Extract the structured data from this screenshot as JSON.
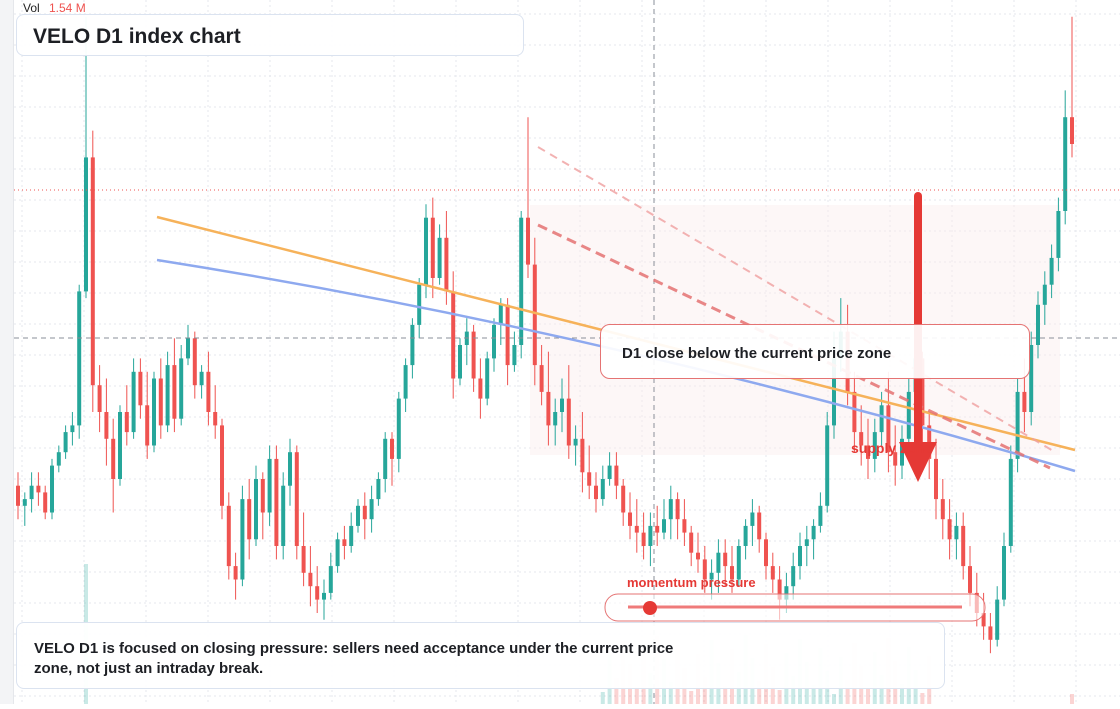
{
  "header": {
    "vol_label": "Vol",
    "vol_value": "1.54 M",
    "title": "VELO D1 index chart"
  },
  "annotations": {
    "callout": "D1 close below the current price zone",
    "zone_label": "supply zone",
    "momentum_label": "momentum pressure",
    "note": "VELO D1 is focused on closing pressure: sellers need acceptance under the current price zone, not just an intraday break."
  },
  "colors": {
    "up": "#26a69a",
    "down": "#ef5350",
    "arrow": "#e53935",
    "yellow_line": "#f6b25a",
    "blue_line": "#8ea9ef",
    "grid": "#e4e7ec",
    "crosshair": "#8a8f98",
    "price_line": "#ef5350"
  },
  "chart_data": {
    "type": "candlestick",
    "note": "Price axis is not printed; values are in relative index units (0-100).",
    "ylim": [
      0,
      100
    ],
    "candles": [
      [
        29,
        31,
        24,
        26
      ],
      [
        26,
        28,
        23,
        27
      ],
      [
        27,
        31,
        25,
        29
      ],
      [
        29,
        31,
        26,
        28
      ],
      [
        28,
        29,
        24,
        25
      ],
      [
        25,
        33,
        24,
        32
      ],
      [
        32,
        35,
        31,
        34
      ],
      [
        34,
        38,
        33,
        37
      ],
      [
        37,
        40,
        35,
        38
      ],
      [
        38,
        59,
        36,
        58
      ],
      [
        58,
        99,
        57,
        78
      ],
      [
        78,
        82,
        40,
        44
      ],
      [
        44,
        47,
        37,
        40
      ],
      [
        40,
        45,
        32,
        36
      ],
      [
        36,
        39,
        25,
        30
      ],
      [
        30,
        41,
        29,
        40
      ],
      [
        40,
        44,
        35,
        37
      ],
      [
        37,
        48,
        36,
        46
      ],
      [
        46,
        48,
        39,
        41
      ],
      [
        41,
        46,
        33,
        35
      ],
      [
        35,
        46,
        34,
        45
      ],
      [
        45,
        48,
        36,
        38
      ],
      [
        38,
        49,
        37,
        47
      ],
      [
        47,
        51,
        37,
        39
      ],
      [
        39,
        50,
        38,
        48
      ],
      [
        48,
        53,
        47,
        51
      ],
      [
        51,
        52,
        42,
        44
      ],
      [
        44,
        47,
        42,
        46
      ],
      [
        46,
        49,
        38,
        40
      ],
      [
        40,
        44,
        36,
        38
      ],
      [
        38,
        39,
        24,
        26
      ],
      [
        26,
        28,
        15,
        17
      ],
      [
        17,
        19,
        12,
        15
      ],
      [
        15,
        29,
        14,
        27
      ],
      [
        27,
        30,
        18,
        21
      ],
      [
        21,
        32,
        20,
        30
      ],
      [
        30,
        31,
        21,
        25
      ],
      [
        25,
        35,
        23,
        33
      ],
      [
        33,
        35,
        18,
        20
      ],
      [
        20,
        31,
        18,
        29
      ],
      [
        29,
        36,
        26,
        34
      ],
      [
        34,
        35,
        18,
        20
      ],
      [
        20,
        25,
        14,
        16
      ],
      [
        16,
        20,
        11,
        14
      ],
      [
        14,
        17,
        10,
        12
      ],
      [
        12,
        15,
        9,
        13
      ],
      [
        13,
        19,
        12,
        17
      ],
      [
        17,
        22,
        16,
        21
      ],
      [
        21,
        23,
        18,
        20
      ],
      [
        20,
        25,
        19,
        23
      ],
      [
        23,
        27,
        22,
        26
      ],
      [
        26,
        28,
        21,
        24
      ],
      [
        24,
        29,
        22,
        27
      ],
      [
        27,
        31,
        26,
        30
      ],
      [
        30,
        37,
        28,
        36
      ],
      [
        36,
        37,
        29,
        33
      ],
      [
        33,
        43,
        31,
        42
      ],
      [
        42,
        48,
        40,
        47
      ],
      [
        47,
        54,
        45,
        53
      ],
      [
        53,
        60,
        51,
        59
      ],
      [
        59,
        71,
        57,
        69
      ],
      [
        69,
        72,
        57,
        60
      ],
      [
        60,
        68,
        59,
        66
      ],
      [
        66,
        70,
        56,
        58
      ],
      [
        58,
        61,
        42,
        45
      ],
      [
        45,
        51,
        44,
        50
      ],
      [
        50,
        54,
        47,
        52
      ],
      [
        52,
        53,
        43,
        45
      ],
      [
        45,
        48,
        39,
        42
      ],
      [
        42,
        49,
        41,
        48
      ],
      [
        48,
        54,
        46,
        53
      ],
      [
        53,
        57,
        50,
        56
      ],
      [
        56,
        57,
        44,
        47
      ],
      [
        47,
        52,
        46,
        50
      ],
      [
        50,
        70,
        48,
        69
      ],
      [
        69,
        84,
        60,
        62
      ],
      [
        62,
        66,
        44,
        47
      ],
      [
        47,
        50,
        41,
        43
      ],
      [
        43,
        49,
        35,
        38
      ],
      [
        38,
        42,
        35,
        40
      ],
      [
        40,
        45,
        37,
        42
      ],
      [
        42,
        47,
        33,
        35
      ],
      [
        35,
        38,
        32,
        36
      ],
      [
        36,
        40,
        28,
        31
      ],
      [
        31,
        35,
        27,
        29
      ],
      [
        29,
        31,
        25,
        27
      ],
      [
        27,
        32,
        26,
        30
      ],
      [
        30,
        34,
        29,
        32
      ],
      [
        32,
        34,
        27,
        29
      ],
      [
        29,
        30,
        23,
        25
      ],
      [
        25,
        28,
        21,
        23
      ],
      [
        23,
        27,
        19,
        22
      ],
      [
        22,
        25,
        18,
        20
      ],
      [
        20,
        25,
        17,
        23
      ],
      [
        23,
        26,
        20,
        22
      ],
      [
        22,
        27,
        21,
        24
      ],
      [
        24,
        29,
        21,
        27
      ],
      [
        27,
        28,
        21,
        24
      ],
      [
        24,
        27,
        20,
        22
      ],
      [
        22,
        23,
        17,
        19
      ],
      [
        19,
        22,
        16,
        18
      ],
      [
        18,
        20,
        13,
        15
      ],
      [
        15,
        18,
        12,
        16
      ],
      [
        16,
        21,
        13,
        19
      ],
      [
        19,
        21,
        14,
        17
      ],
      [
        17,
        20,
        13,
        15
      ],
      [
        15,
        21,
        14,
        20
      ],
      [
        20,
        24,
        18,
        23
      ],
      [
        23,
        27,
        20,
        25
      ],
      [
        25,
        26,
        19,
        21
      ],
      [
        21,
        22,
        15,
        17
      ],
      [
        17,
        19,
        13,
        15
      ],
      [
        15,
        17,
        9,
        12
      ],
      [
        12,
        16,
        10,
        14
      ],
      [
        14,
        19,
        12,
        17
      ],
      [
        17,
        22,
        15,
        20
      ],
      [
        20,
        23,
        17,
        21
      ],
      [
        21,
        24,
        18,
        23
      ],
      [
        23,
        28,
        22,
        26
      ],
      [
        26,
        40,
        25,
        38
      ],
      [
        38,
        52,
        36,
        48
      ],
      [
        48,
        57,
        46,
        52
      ],
      [
        52,
        56,
        41,
        43
      ],
      [
        43,
        46,
        34,
        37
      ],
      [
        37,
        41,
        32,
        35
      ],
      [
        35,
        39,
        30,
        33
      ],
      [
        33,
        39,
        31,
        37
      ],
      [
        37,
        43,
        35,
        41
      ],
      [
        41,
        46,
        31,
        34
      ],
      [
        34,
        38,
        29,
        32
      ],
      [
        32,
        38,
        30,
        36
      ],
      [
        36,
        45,
        34,
        43
      ],
      [
        43,
        50,
        41,
        48
      ],
      [
        48,
        49,
        35,
        38
      ],
      [
        38,
        40,
        30,
        33
      ],
      [
        33,
        36,
        24,
        27
      ],
      [
        27,
        30,
        21,
        24
      ],
      [
        24,
        27,
        18,
        21
      ],
      [
        21,
        25,
        18,
        23
      ],
      [
        23,
        25,
        15,
        17
      ],
      [
        17,
        20,
        11,
        13
      ],
      [
        13,
        16,
        8,
        10
      ],
      [
        10,
        13,
        6,
        8
      ],
      [
        8,
        10,
        4,
        6
      ],
      [
        6,
        14,
        5,
        12
      ],
      [
        12,
        22,
        11,
        20
      ],
      [
        20,
        35,
        19,
        33
      ],
      [
        33,
        45,
        31,
        43
      ],
      [
        43,
        48,
        37,
        40
      ],
      [
        40,
        52,
        38,
        50
      ],
      [
        50,
        58,
        48,
        56
      ],
      [
        56,
        61,
        53,
        59
      ],
      [
        59,
        65,
        57,
        63
      ],
      [
        63,
        72,
        61,
        70
      ],
      [
        70,
        88,
        68,
        84
      ],
      [
        84,
        99,
        78,
        80
      ]
    ]
  }
}
